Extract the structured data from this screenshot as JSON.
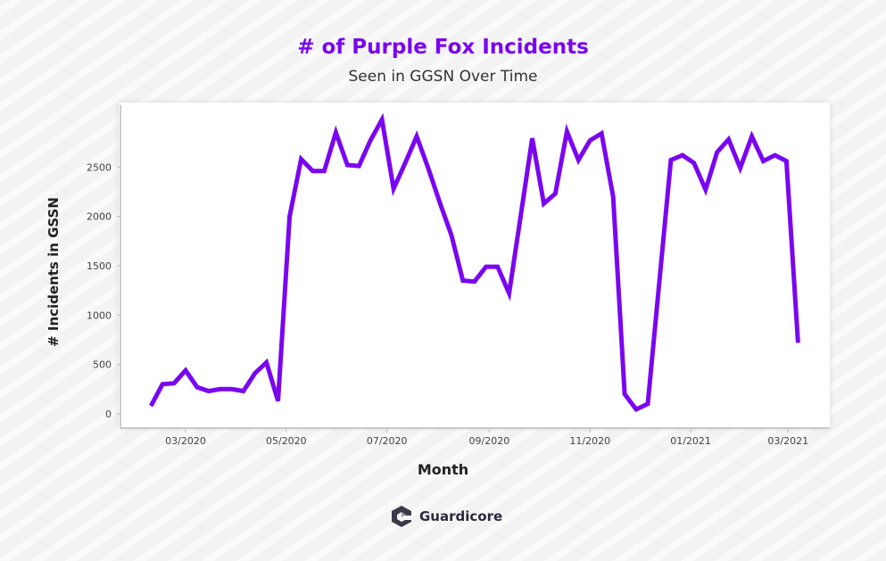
{
  "chart_data": {
    "type": "line",
    "title": "# of Purple Fox Incidents",
    "subtitle": "Seen in GGSN Over Time",
    "xlabel": "Month",
    "ylabel": "# Incidents in GSSN",
    "ylim": [
      0,
      2700
    ],
    "yticks": [
      0,
      500,
      1000,
      1500,
      2000,
      2500
    ],
    "xticks": [
      {
        "date": "2020-03-01",
        "label": "03/2020"
      },
      {
        "date": "2020-05-01",
        "label": "05/2020"
      },
      {
        "date": "2020-07-01",
        "label": "07/2020"
      },
      {
        "date": "2020-09-01",
        "label": "09/2020"
      },
      {
        "date": "2020-11-01",
        "label": "11/2020"
      },
      {
        "date": "2021-01-01",
        "label": "01/2021"
      },
      {
        "date": "2021-03-01",
        "label": "03/2021"
      }
    ],
    "grid": false,
    "line_color": "#7a06f0",
    "x": [
      "2020-02-09",
      "2020-02-16",
      "2020-02-23",
      "2020-03-01",
      "2020-03-08",
      "2020-03-15",
      "2020-03-22",
      "2020-03-29",
      "2020-04-05",
      "2020-04-12",
      "2020-04-19",
      "2020-04-26",
      "2020-05-03",
      "2020-05-10",
      "2020-05-17",
      "2020-05-24",
      "2020-05-31",
      "2020-06-07",
      "2020-06-14",
      "2020-06-21",
      "2020-06-28",
      "2020-07-05",
      "2020-07-12",
      "2020-07-19",
      "2020-07-26",
      "2020-08-02",
      "2020-08-09",
      "2020-08-16",
      "2020-08-23",
      "2020-08-30",
      "2020-09-06",
      "2020-09-13",
      "2020-09-20",
      "2020-09-27",
      "2020-10-04",
      "2020-10-11",
      "2020-10-18",
      "2020-10-25",
      "2020-11-01",
      "2020-11-08",
      "2020-11-15",
      "2020-11-22",
      "2020-11-29",
      "2020-12-06",
      "2020-12-13",
      "2020-12-20",
      "2020-12-27",
      "2021-01-03",
      "2021-01-10",
      "2021-01-17",
      "2021-01-24",
      "2021-01-31",
      "2021-02-07",
      "2021-02-14",
      "2021-02-21",
      "2021-02-28",
      "2021-03-07"
    ],
    "values": [
      80,
      300,
      310,
      440,
      270,
      230,
      250,
      250,
      230,
      410,
      520,
      130,
      2000,
      2580,
      2460,
      2460,
      2850,
      2520,
      2510,
      2770,
      2980,
      2280,
      2540,
      2810,
      2490,
      2140,
      1810,
      1350,
      1340,
      1490,
      1490,
      1220,
      2000,
      2790,
      2130,
      2230,
      2860,
      2570,
      2770,
      2840,
      2200,
      200,
      45,
      100,
      1340,
      2570,
      2620,
      2540,
      2270,
      2650,
      2780,
      2490,
      2810,
      2560,
      2620,
      2560,
      720
    ]
  },
  "brand": {
    "name": "Guardicore",
    "accent": "#7a06f0"
  }
}
